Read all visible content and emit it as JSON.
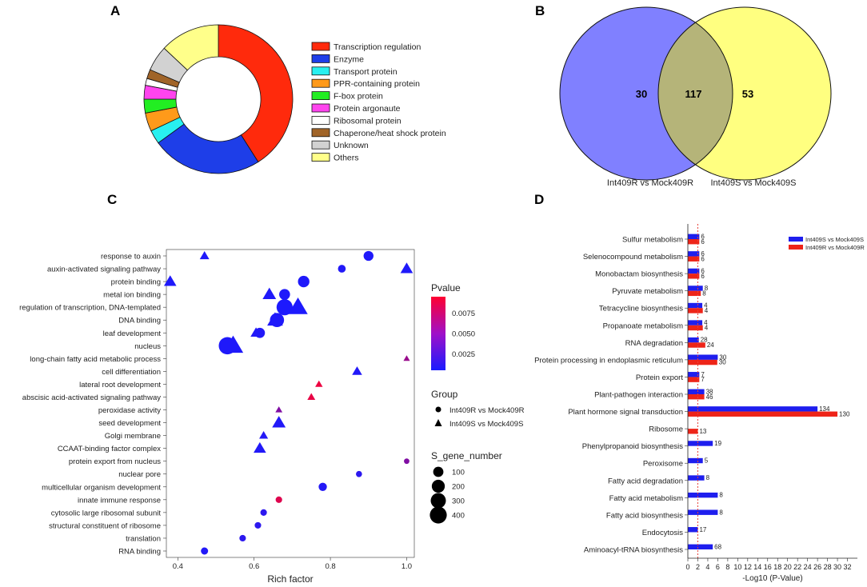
{
  "panels": {
    "a": "A",
    "b": "B",
    "c": "C",
    "d": "D"
  },
  "colors": {
    "int409r_series": "#1e1eee",
    "int409s_series": "#ee2418",
    "venn_left": "#8080ff",
    "venn_right": "#ffff80",
    "venn_overlap": "#b5b479",
    "pvalue_low": "#1a1aff",
    "pvalue_high": "#ff0030",
    "refline": "#e8413a"
  },
  "chart_data": [
    {
      "type": "pie",
      "variant": "donut",
      "panel": "A",
      "title": "",
      "slices": [
        {
          "label": "Transcription regulation",
          "value": 41,
          "color": "#ff2a0c"
        },
        {
          "label": "Enzyme",
          "value": 24,
          "color": "#1e3ee8"
        },
        {
          "label": "Transport protein",
          "value": 3,
          "color": "#28f0f0"
        },
        {
          "label": "PPR-containing protein",
          "value": 4,
          "color": "#ff9a1a"
        },
        {
          "label": "F-box protein",
          "value": 3,
          "color": "#22ee22"
        },
        {
          "label": "Protein argonaute",
          "value": 3,
          "color": "#ff44ee"
        },
        {
          "label": "Ribosomal protein",
          "value": 1.5,
          "color": "#ffffff"
        },
        {
          "label": "Chaperone/heat shock protein",
          "value": 2,
          "color": "#a06428"
        },
        {
          "label": "Unknown",
          "value": 5.5,
          "color": "#d2d2d2"
        },
        {
          "label": "Others",
          "value": 13,
          "color": "#ffff8a"
        }
      ]
    },
    {
      "type": "venn",
      "panel": "B",
      "sets": [
        {
          "name": "Int409R vs Mock409R",
          "unique": 30
        },
        {
          "name": "Int409S vs Mock409S",
          "unique": 53
        }
      ],
      "intersection": 117
    },
    {
      "type": "scatter",
      "panel": "C",
      "xlabel": "Rich factor",
      "xlim": [
        0.37,
        1.02
      ],
      "xticks": [
        "0.4",
        "0.6",
        "0.8",
        "1.0"
      ],
      "terms": [
        "response to auxin",
        "auxin-activated signaling pathway",
        "protein binding",
        "metal ion binding",
        "regulation of transcription, DNA-templated",
        "DNA binding",
        "leaf development",
        "nucleus",
        "long-chain fatty acid metabolic process",
        "cell differentiation",
        "lateral root development",
        "abscisic acid-activated signaling pathway",
        "peroxidase activity",
        "seed development",
        "Golgi membrane",
        "CCAAT-binding factor complex",
        "protein export from nucleus",
        "nuclear pore",
        "multicellular organism development",
        "innate immune response",
        "cytosolic large ribosomal subunit",
        "structural constituent of ribosome",
        "translation",
        "RNA binding"
      ],
      "points": [
        {
          "term": "response to auxin",
          "x": 0.9,
          "group": "Int409R vs Mock409R",
          "genes": 90,
          "p": 0.0007
        },
        {
          "term": "response to auxin",
          "x": 0.47,
          "group": "Int409S vs Mock409S",
          "genes": 50,
          "p": 0.0007
        },
        {
          "term": "auxin-activated signaling pathway",
          "x": 0.83,
          "group": "Int409R vs Mock409R",
          "genes": 40,
          "p": 0.0008
        },
        {
          "term": "auxin-activated signaling pathway",
          "x": 1.0,
          "group": "Int409S vs Mock409S",
          "genes": 120,
          "p": 0.0007
        },
        {
          "term": "protein binding",
          "x": 0.73,
          "group": "Int409R vs Mock409R",
          "genes": 140,
          "p": 0.0007
        },
        {
          "term": "protein binding",
          "x": 0.38,
          "group": "Int409S vs Mock409S",
          "genes": 120,
          "p": 0.0007
        },
        {
          "term": "metal ion binding",
          "x": 0.68,
          "group": "Int409R vs Mock409R",
          "genes": 120,
          "p": 0.0007
        },
        {
          "term": "metal ion binding",
          "x": 0.64,
          "group": "Int409S vs Mock409S",
          "genes": 150,
          "p": 0.0007
        },
        {
          "term": "regulation of transcription, DNA-templated",
          "x": 0.68,
          "group": "Int409R vs Mock409R",
          "genes": 350,
          "p": 0.0006
        },
        {
          "term": "regulation of transcription, DNA-templated",
          "x": 0.715,
          "group": "Int409S vs Mock409S",
          "genes": 400,
          "p": 0.0006
        },
        {
          "term": "DNA binding",
          "x": 0.66,
          "group": "Int409R vs Mock409R",
          "genes": 250,
          "p": 0.0007
        },
        {
          "term": "DNA binding",
          "x": 0.655,
          "group": "Int409S vs Mock409S",
          "genes": 230,
          "p": 0.0007
        },
        {
          "term": "leaf development",
          "x": 0.615,
          "group": "Int409R vs Mock409R",
          "genes": 100,
          "p": 0.0008
        },
        {
          "term": "leaf development",
          "x": 0.605,
          "group": "Int409S vs Mock409S",
          "genes": 80,
          "p": 0.0008
        },
        {
          "term": "nucleus",
          "x": 0.53,
          "group": "Int409R vs Mock409R",
          "genes": 420,
          "p": 0.0007
        },
        {
          "term": "nucleus",
          "x": 0.545,
          "group": "Int409S vs Mock409S",
          "genes": 440,
          "p": 0.0007
        },
        {
          "term": "long-chain fatty acid metabolic process",
          "x": 1.0,
          "group": "Int409S vs Mock409S",
          "genes": 10,
          "p": 0.0055
        },
        {
          "term": "cell differentiation",
          "x": 0.87,
          "group": "Int409S vs Mock409S",
          "genes": 60,
          "p": 0.0008
        },
        {
          "term": "lateral root development",
          "x": 0.77,
          "group": "Int409S vs Mock409S",
          "genes": 20,
          "p": 0.0088
        },
        {
          "term": "abscisic acid-activated signaling pathway",
          "x": 0.75,
          "group": "Int409S vs Mock409S",
          "genes": 25,
          "p": 0.0086
        },
        {
          "term": "peroxidase activity",
          "x": 0.665,
          "group": "Int409S vs Mock409S",
          "genes": 15,
          "p": 0.0045
        },
        {
          "term": "seed development",
          "x": 0.665,
          "group": "Int409S vs Mock409S",
          "genes": 150,
          "p": 0.0008
        },
        {
          "term": "Golgi membrane",
          "x": 0.625,
          "group": "Int409S vs Mock409S",
          "genes": 40,
          "p": 0.0009
        },
        {
          "term": "CCAAT-binding factor complex",
          "x": 0.615,
          "group": "Int409S vs Mock409S",
          "genes": 120,
          "p": 0.0008
        },
        {
          "term": "protein export from nucleus",
          "x": 1.0,
          "group": "Int409R vs Mock409R",
          "genes": 8,
          "p": 0.0045
        },
        {
          "term": "nuclear pore",
          "x": 0.875,
          "group": "Int409R vs Mock409R",
          "genes": 15,
          "p": 0.0012
        },
        {
          "term": "multicellular organism development",
          "x": 0.78,
          "group": "Int409R vs Mock409R",
          "genes": 50,
          "p": 0.0009
        },
        {
          "term": "innate immune response",
          "x": 0.665,
          "group": "Int409R vs Mock409R",
          "genes": 20,
          "p": 0.0082
        },
        {
          "term": "cytosolic large ribosomal subunit",
          "x": 0.625,
          "group": "Int409R vs Mock409R",
          "genes": 20,
          "p": 0.0012
        },
        {
          "term": "structural constituent of ribosome",
          "x": 0.61,
          "group": "Int409R vs Mock409R",
          "genes": 20,
          "p": 0.0012
        },
        {
          "term": "translation",
          "x": 0.57,
          "group": "Int409R vs Mock409R",
          "genes": 20,
          "p": 0.0012
        },
        {
          "term": "RNA binding",
          "x": 0.47,
          "group": "Int409R vs Mock409R",
          "genes": 30,
          "p": 0.0008
        }
      ],
      "legend": {
        "pvalue_title": "Pvalue",
        "pvalue_ticks": [
          "0.0075",
          "0.0050",
          "0.0025"
        ],
        "pvalue_range": [
          0.0005,
          0.0095
        ],
        "group_title": "Group",
        "groups": [
          "Int409R vs Mock409R",
          "Int409S vs Mock409S"
        ],
        "size_title": "S_gene_number",
        "sizes": [
          "100",
          "200",
          "300",
          "400"
        ]
      }
    },
    {
      "type": "bar",
      "orientation": "horizontal",
      "panel": "D",
      "xlabel": "-Log10 (P-Value)",
      "xlim": [
        0,
        34
      ],
      "xticks": [
        "0",
        "2",
        "4",
        "6",
        "8",
        "10",
        "12",
        "14",
        "16",
        "18",
        "20",
        "22",
        "24",
        "26",
        "28",
        "30",
        "32"
      ],
      "reference_x": 2,
      "categories": [
        "Sulfur metabolism",
        "Selenocompound metabolism",
        "Monobactam biosynthesis",
        "Pyruvate metabolism",
        "Tetracycline biosynthesis",
        "Propanoate metabolism",
        "RNA degradation",
        "Protein processing in endoplasmic reticulum",
        "Protein export",
        "Plant-pathogen interaction",
        "Plant hormone signal transduction",
        "Ribosome",
        "Phenylpropanoid biosynthesis",
        "Peroxisome",
        "Fatty acid degradation",
        "Fatty acid metabolism",
        "Fatty acid biosynthesis",
        "Endocytosis",
        "Aminoacyl-tRNA biosynthesis"
      ],
      "series": [
        {
          "name": "Int409S vs Mock409S",
          "values": [
            2.3,
            2.3,
            2.3,
            3.0,
            2.9,
            2.9,
            2.2,
            6.0,
            2.3,
            3.3,
            26.0,
            null,
            5.0,
            3.0,
            3.3,
            6.0,
            6.0,
            2.0,
            5.0
          ],
          "labels": [
            "6",
            "6",
            "6",
            "8",
            "4",
            "4",
            "28",
            "30",
            "7",
            "38",
            "134",
            "",
            "19",
            "5",
            "8",
            "8",
            "8",
            "17",
            "68"
          ]
        },
        {
          "name": "Int409R vs Mock409R",
          "values": [
            2.3,
            2.3,
            2.3,
            2.6,
            3.0,
            3.0,
            3.5,
            5.9,
            2.3,
            3.3,
            30.0,
            2.0,
            null,
            null,
            null,
            null,
            null,
            null,
            null
          ],
          "labels": [
            "6",
            "6",
            "6",
            "8",
            "4",
            "4",
            "24",
            "30",
            "7",
            "46",
            "130",
            "13",
            "",
            "",
            "",
            "",
            "",
            "",
            ""
          ]
        }
      ]
    }
  ]
}
